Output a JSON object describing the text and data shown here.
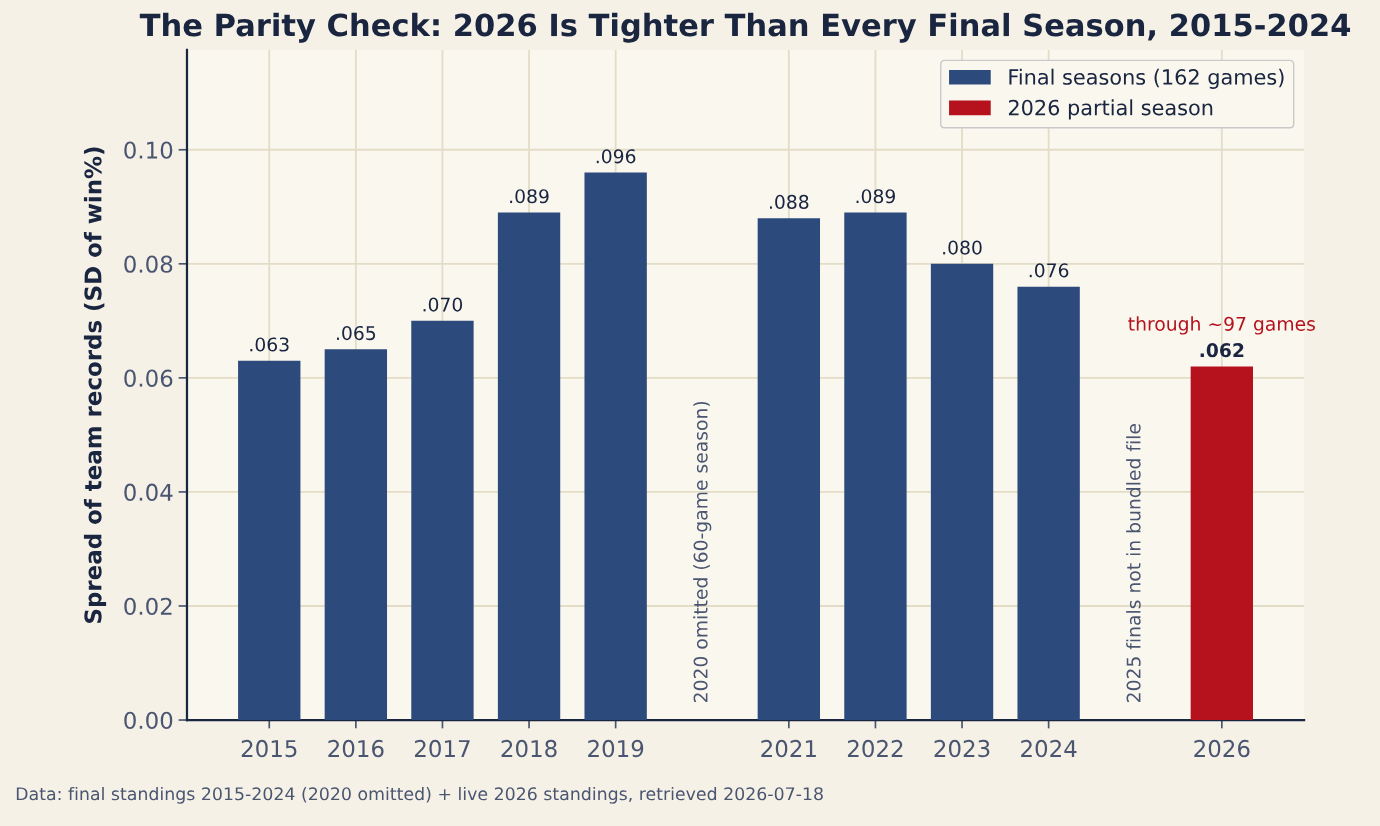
{
  "chart_data": {
    "type": "bar",
    "title": "The Parity Check: 2026 Is Tighter Than Every Final Season, 2015-2024",
    "ylabel": "Spread of team records (SD of win%)",
    "series": [
      {
        "name": "Final seasons (162 games)",
        "color": "#2c4a7c",
        "x": [
          2015,
          2016,
          2017,
          2018,
          2019,
          2021,
          2022,
          2023,
          2024
        ],
        "values": [
          0.063,
          0.065,
          0.07,
          0.089,
          0.096,
          0.088,
          0.089,
          0.08,
          0.076
        ],
        "value_labels": [
          ".063",
          ".065",
          ".070",
          ".089",
          ".096",
          ".088",
          ".089",
          ".080",
          ".076"
        ]
      },
      {
        "name": "2026 partial season",
        "color": "#b5121e",
        "x": [
          2026
        ],
        "values": [
          0.062
        ],
        "value_labels": [
          ".062"
        ]
      }
    ],
    "xlim": [
      2014.05,
      2026.95
    ],
    "xticks": [
      2015,
      2016,
      2017,
      2018,
      2019,
      2021,
      2022,
      2023,
      2024,
      2026
    ],
    "ylim": [
      0,
      0.1175
    ],
    "yticks": [
      {
        "value": 0,
        "label": "0.00"
      },
      {
        "value": 0.02,
        "label": "0.02"
      },
      {
        "value": 0.04,
        "label": "0.04"
      },
      {
        "value": 0.06,
        "label": "0.06"
      },
      {
        "value": 0.08,
        "label": "0.08"
      },
      {
        "value": 0.1,
        "label": "0.10"
      }
    ],
    "annotations": [
      "2020 omitted (60-game season)",
      "2025 finals not in bundled file",
      "through ~97 games",
      "Data: final standings 2015-2024 (2020 omitted) + live 2026 standings, retrieved 2026-07-18"
    ],
    "grid": true,
    "legend": "top right"
  }
}
